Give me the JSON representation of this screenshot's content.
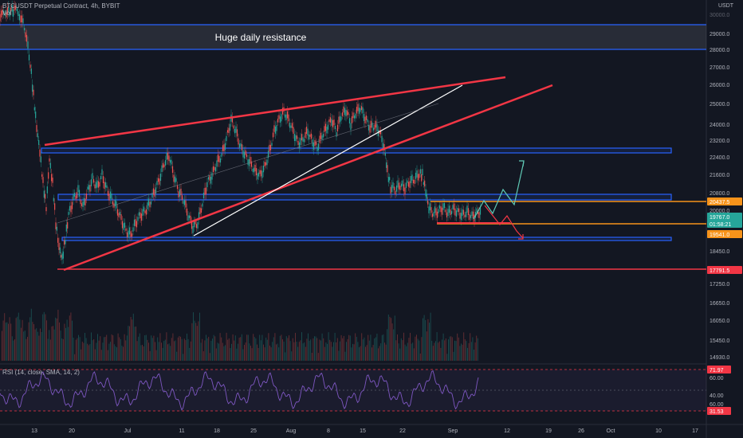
{
  "header": {
    "title": "BTCUSDT Perpetual Contract, 4h, BYBIT",
    "volume_label": "Vol"
  },
  "price_axis": {
    "unit": "USDT",
    "ticks": [
      "30000.0",
      "29000.0",
      "28000.0",
      "27000.0",
      "26000.0",
      "25000.0",
      "24000.0",
      "23200.0",
      "22400.0",
      "21600.0",
      "20800.0",
      "20000.0",
      "18450.0",
      "17250.0",
      "16650.0",
      "16050.0",
      "15450.0",
      "14930.0"
    ],
    "top_clipped_label": "30000.0",
    "badges": [
      {
        "text": "20437.5",
        "color": "#f7931a"
      },
      {
        "text": "19767.0",
        "color": "#26a69a"
      },
      {
        "text": "01:58:21",
        "color": "#26a69a"
      },
      {
        "text": "19541.0",
        "color": "#f7931a"
      },
      {
        "text": "17791.5",
        "color": "#f23645"
      }
    ]
  },
  "annotation": {
    "resistance_label": "Huge daily resistance"
  },
  "rsi": {
    "label": "RSI (14, close, SMA, 14, 2)",
    "ticks": [
      "60.00",
      "40.00"
    ],
    "badges": [
      {
        "text": "71.97",
        "color": "#f23645"
      },
      {
        "text": "31.53",
        "color": "#f23645"
      }
    ]
  },
  "time_axis": {
    "labels": [
      "13",
      "20",
      "Jul",
      "11",
      "18",
      "25",
      "Aug",
      "8",
      "15",
      "22",
      "Sep",
      "12",
      "19",
      "26",
      "Oct",
      "10",
      "17"
    ]
  },
  "colors": {
    "background": "#131722",
    "up": "#26a69a",
    "down": "#ef5350",
    "wedge": "#f23645",
    "zone_border": "#2962ff",
    "orange": "#f7931a",
    "rsi_line": "#7e57c2"
  }
}
